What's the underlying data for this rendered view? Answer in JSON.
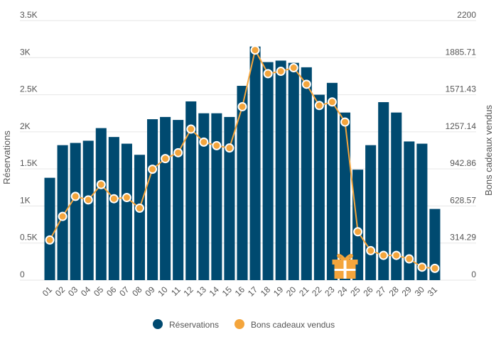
{
  "chart_data": {
    "type": "bar",
    "categories": [
      "01",
      "02",
      "03",
      "04",
      "05",
      "06",
      "07",
      "08",
      "09",
      "10",
      "11",
      "12",
      "13",
      "14",
      "15",
      "16",
      "17",
      "18",
      "19",
      "20",
      "21",
      "22",
      "23",
      "24",
      "25",
      "26",
      "27",
      "28",
      "29",
      "30",
      "31"
    ],
    "series": [
      {
        "name": "Réservations",
        "type": "bar",
        "axis": "left",
        "color": "#004a70",
        "values": [
          1380,
          1820,
          1850,
          1880,
          2050,
          1930,
          1840,
          1690,
          2170,
          2200,
          2160,
          2410,
          2250,
          2250,
          2200,
          2620,
          3150,
          2940,
          2960,
          2930,
          2870,
          2500,
          2660,
          2260,
          1490,
          1820,
          2400,
          2260,
          1870,
          1840,
          960
        ]
      },
      {
        "name": "Bons cadeaux vendus",
        "type": "line",
        "axis": "right",
        "color": "#f4a53c",
        "values": [
          340,
          540,
          710,
          680,
          810,
          690,
          700,
          610,
          940,
          1030,
          1080,
          1280,
          1170,
          1140,
          1120,
          1470,
          1950,
          1750,
          1770,
          1800,
          1660,
          1480,
          1510,
          1340,
          410,
          250,
          210,
          210,
          180,
          110,
          100
        ]
      }
    ],
    "ylabel": "Réservations",
    "y2label": "Bons cadeaux vendus",
    "ylim": [
      0,
      3500
    ],
    "y2lim": [
      0,
      2200
    ],
    "yticks": [
      "0",
      "0.5K",
      "1K",
      "1.5K",
      "2K",
      "2.5K",
      "3K",
      "3.5K"
    ],
    "y2ticks": [
      "0",
      "314.29",
      "628.57",
      "942.86",
      "1257.14",
      "1571.43",
      "1885.71",
      "2200"
    ],
    "gift_marker_category": "24",
    "gift_icon": "gift-icon",
    "grid": true,
    "legend_position": "bottom-center"
  }
}
